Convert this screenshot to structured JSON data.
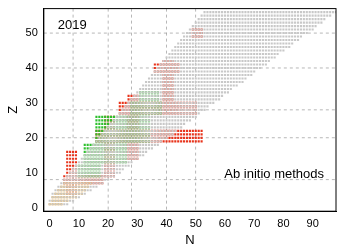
{
  "chart_data": {
    "type": "scatter",
    "annotations": [
      "2019",
      "Ab initio methods"
    ],
    "x_label": "N",
    "y_label": "Z",
    "xlim": [
      -2,
      98
    ],
    "xticks": [
      0,
      10,
      20,
      30,
      40,
      50,
      60,
      70,
      80,
      90
    ],
    "ylim": [
      -1,
      57
    ],
    "yticks": [
      0,
      10,
      20,
      30,
      40,
      50
    ],
    "grid": false,
    "legend": false,
    "marker": "square",
    "reference_lines": {
      "n": [
        8,
        20,
        28,
        40,
        50
      ],
      "z": [
        8,
        20,
        28,
        40,
        50
      ]
    },
    "series": [
      {
        "color": "#c8c8c8",
        "rows": [
          [
            1,
            0,
            6
          ],
          [
            2,
            0,
            8
          ],
          [
            3,
            1,
            10
          ],
          [
            4,
            1,
            12
          ],
          [
            5,
            2,
            14
          ],
          [
            6,
            3,
            16
          ],
          [
            7,
            4,
            18
          ],
          [
            8,
            5,
            20
          ],
          [
            9,
            6,
            22
          ],
          [
            10,
            7,
            24
          ],
          [
            11,
            8,
            25
          ],
          [
            12,
            9,
            27
          ],
          [
            13,
            10,
            28
          ],
          [
            14,
            11,
            30
          ],
          [
            15,
            12,
            32
          ],
          [
            16,
            13,
            33
          ],
          [
            17,
            14,
            35
          ],
          [
            18,
            15,
            37
          ],
          [
            19,
            16,
            38
          ],
          [
            20,
            17,
            40
          ],
          [
            21,
            18,
            42
          ],
          [
            22,
            19,
            43
          ],
          [
            23,
            20,
            45
          ],
          [
            24,
            21,
            46
          ],
          [
            25,
            22,
            48
          ],
          [
            26,
            23,
            50
          ],
          [
            27,
            24,
            51
          ],
          [
            28,
            25,
            53
          ],
          [
            29,
            26,
            54
          ],
          [
            30,
            27,
            56
          ],
          [
            31,
            28,
            58
          ],
          [
            32,
            29,
            59
          ],
          [
            33,
            30,
            61
          ],
          [
            34,
            31,
            62
          ],
          [
            35,
            32,
            64
          ],
          [
            36,
            33,
            66
          ],
          [
            37,
            34,
            67
          ],
          [
            38,
            35,
            69
          ],
          [
            39,
            36,
            70
          ],
          [
            40,
            37,
            72
          ],
          [
            41,
            38,
            74
          ],
          [
            42,
            39,
            75
          ],
          [
            43,
            40,
            77
          ],
          [
            44,
            41,
            78
          ],
          [
            45,
            42,
            80
          ],
          [
            46,
            43,
            82
          ],
          [
            47,
            44,
            83
          ],
          [
            48,
            45,
            85
          ],
          [
            49,
            46,
            86
          ],
          [
            50,
            47,
            88
          ],
          [
            51,
            48,
            90
          ],
          [
            52,
            49,
            91
          ],
          [
            53,
            50,
            93
          ],
          [
            54,
            51,
            94
          ],
          [
            55,
            52,
            96
          ],
          [
            56,
            53,
            98
          ]
        ]
      },
      {
        "color": "#f5a623",
        "rows": [
          [
            1,
            0,
            4
          ],
          [
            2,
            1,
            6
          ],
          [
            3,
            1,
            9
          ],
          [
            4,
            2,
            11
          ],
          [
            5,
            3,
            12
          ],
          [
            6,
            4,
            13
          ],
          [
            7,
            5,
            14
          ]
        ]
      },
      {
        "color": "#2ec02e",
        "rows": [
          [
            9,
            10,
            17
          ],
          [
            10,
            10,
            17
          ],
          [
            11,
            10,
            17
          ],
          [
            12,
            10,
            17
          ],
          [
            13,
            12,
            26
          ],
          [
            14,
            12,
            26
          ],
          [
            15,
            12,
            26
          ],
          [
            16,
            12,
            26
          ],
          [
            17,
            12,
            26
          ],
          [
            18,
            12,
            26
          ],
          [
            19,
            16,
            34
          ],
          [
            20,
            16,
            34
          ],
          [
            21,
            16,
            34
          ],
          [
            22,
            16,
            34
          ],
          [
            23,
            16,
            34
          ],
          [
            24,
            16,
            34
          ],
          [
            25,
            16,
            34
          ],
          [
            26,
            16,
            34
          ],
          [
            27,
            28,
            38
          ],
          [
            28,
            28,
            38
          ],
          [
            29,
            28,
            38
          ],
          [
            30,
            28,
            38
          ],
          [
            31,
            31,
            37
          ],
          [
            32,
            31,
            37
          ],
          [
            33,
            31,
            37
          ]
        ]
      },
      {
        "color": "#e8341c",
        "rows": [
          [
            4,
            6,
            9
          ],
          [
            5,
            6,
            9
          ],
          [
            6,
            6,
            9
          ],
          [
            7,
            5,
            18
          ],
          [
            8,
            5,
            18
          ],
          [
            9,
            5,
            18
          ],
          [
            10,
            6,
            9
          ],
          [
            11,
            6,
            9
          ],
          [
            12,
            6,
            9
          ],
          [
            13,
            6,
            9
          ],
          [
            14,
            6,
            9
          ],
          [
            15,
            6,
            9
          ],
          [
            16,
            6,
            9
          ],
          [
            9,
            19,
            22
          ],
          [
            10,
            19,
            22
          ],
          [
            11,
            19,
            22
          ],
          [
            12,
            19,
            22
          ],
          [
            13,
            19,
            22
          ],
          [
            14,
            19,
            22
          ],
          [
            15,
            19,
            22
          ],
          [
            16,
            19,
            22
          ],
          [
            17,
            19,
            22
          ],
          [
            18,
            19,
            22
          ],
          [
            19,
            16,
            52
          ],
          [
            20,
            16,
            52
          ],
          [
            21,
            16,
            52
          ],
          [
            22,
            16,
            52
          ],
          [
            23,
            19,
            22
          ],
          [
            24,
            19,
            22
          ],
          [
            25,
            19,
            22
          ],
          [
            26,
            19,
            22
          ],
          [
            27,
            24,
            50
          ],
          [
            28,
            24,
            50
          ],
          [
            29,
            24,
            50
          ],
          [
            30,
            24,
            50
          ],
          [
            14,
            27,
            30
          ],
          [
            15,
            27,
            30
          ],
          [
            16,
            27,
            30
          ],
          [
            17,
            27,
            30
          ],
          [
            18,
            27,
            30
          ],
          [
            23,
            27,
            30
          ],
          [
            24,
            27,
            30
          ],
          [
            25,
            27,
            30
          ],
          [
            26,
            27,
            30
          ],
          [
            31,
            27,
            30
          ],
          [
            32,
            27,
            30
          ],
          [
            31,
            39,
            42
          ],
          [
            32,
            39,
            42
          ],
          [
            33,
            39,
            42
          ],
          [
            34,
            39,
            42
          ],
          [
            35,
            39,
            42
          ],
          [
            36,
            39,
            42
          ],
          [
            37,
            39,
            42
          ],
          [
            38,
            39,
            42
          ],
          [
            39,
            36,
            44
          ],
          [
            40,
            36,
            44
          ],
          [
            41,
            36,
            44
          ],
          [
            42,
            39,
            42
          ],
          [
            49,
            49,
            52
          ],
          [
            50,
            49,
            52
          ],
          [
            51,
            49,
            52
          ]
        ]
      }
    ]
  }
}
